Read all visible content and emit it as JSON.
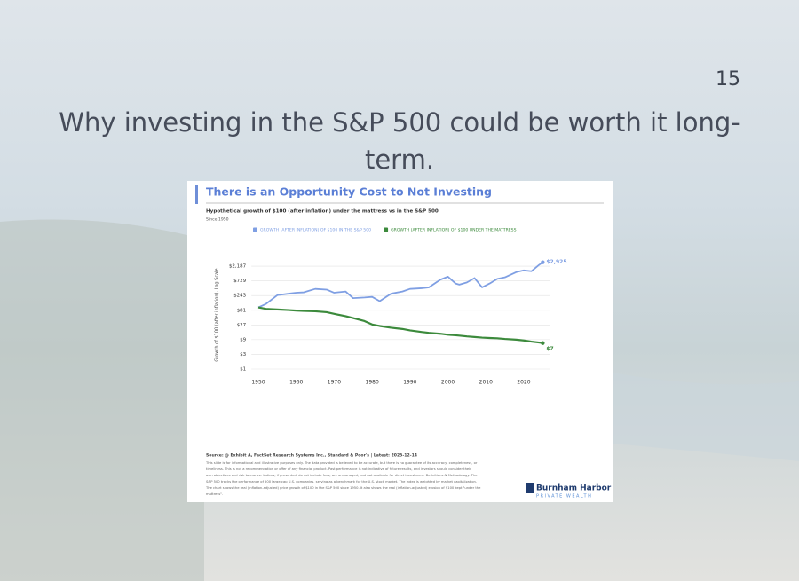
{
  "slide": {
    "page_number": "15",
    "title_lines": [
      "Why investing in the S&P 500 could be worth it long-",
      "term."
    ]
  },
  "chart_data": {
    "type": "line",
    "title": "There is an Opportunity Cost to Not Investing",
    "subtitle": "Hypothetical growth of $100 (after inflation) under the mattress vs in the S&P 500",
    "note": "Since 1950",
    "y_label": "Growth of $100 (after inflation), Log Scale",
    "log_y": true,
    "x": [
      1950,
      1952,
      1955,
      1958,
      1960,
      1962,
      1965,
      1968,
      1970,
      1973,
      1975,
      1978,
      1980,
      1982,
      1985,
      1988,
      1990,
      1993,
      1995,
      1998,
      2000,
      2002,
      2003,
      2005,
      2007,
      2009,
      2011,
      2013,
      2015,
      2018,
      2020,
      2022,
      2024,
      2025
    ],
    "series": [
      {
        "name": "GROWTH (AFTER INFLATION) OF $100 IN THE S&P 500",
        "color": "#7f9fe3",
        "values": [
          100,
          130,
          250,
          280,
          300,
          310,
          400,
          380,
          300,
          330,
          200,
          210,
          220,
          160,
          280,
          330,
          400,
          420,
          450,
          800,
          1000,
          600,
          550,
          650,
          900,
          450,
          600,
          850,
          950,
          1400,
          1600,
          1500,
          2400,
          2925
        ],
        "value_labels": [
          null,
          null,
          null,
          null,
          null,
          null,
          null,
          null,
          null,
          null,
          null,
          null,
          null,
          null,
          null,
          null,
          null,
          null,
          null,
          null,
          null,
          null,
          null,
          null,
          null,
          null,
          null,
          null,
          null,
          null,
          null,
          null,
          null,
          "$2,925"
        ]
      },
      {
        "name": "GROWTH (AFTER INFLATION) OF $100 UNDER THE MATTRESS",
        "color": "#3c8a3c",
        "values": [
          100,
          90,
          86,
          82,
          79,
          77,
          75,
          70,
          62,
          52,
          45,
          36,
          28,
          25,
          22,
          20,
          18,
          16,
          15,
          14,
          13,
          12.5,
          12.2,
          11.5,
          11,
          10.5,
          10.2,
          10,
          9.5,
          9,
          8.5,
          7.8,
          7.3,
          7
        ],
        "value_labels": [
          null,
          null,
          null,
          null,
          null,
          null,
          null,
          null,
          null,
          null,
          null,
          null,
          null,
          null,
          null,
          null,
          null,
          null,
          null,
          null,
          null,
          null,
          null,
          null,
          null,
          null,
          null,
          null,
          null,
          null,
          null,
          null,
          null,
          "$7"
        ]
      }
    ],
    "xlim": [
      1947,
      2027
    ],
    "xticks": [
      1950,
      1960,
      1970,
      1980,
      1990,
      2000,
      2010,
      2020
    ],
    "ylim": [
      1,
      3500
    ],
    "yticks": [
      {
        "value": 1,
        "label": "$1"
      },
      {
        "value": 3,
        "label": "$3"
      },
      {
        "value": 9,
        "label": "$9"
      },
      {
        "value": 27,
        "label": "$27"
      },
      {
        "value": 81,
        "label": "$81"
      },
      {
        "value": 243,
        "label": "$243"
      },
      {
        "value": 729,
        "label": "$729"
      },
      {
        "value": 2187,
        "label": "$2,187"
      }
    ],
    "grid": true,
    "source": "Source: @ Exhibit A, FactSet Research Systems Inc., Standard & Poor's | Latest: 2025-12-14",
    "disclaimer_lines": [
      "This slide is for informational and illustrative purposes only. The data provided is believed to be accurate, but there is no guarantee of its accuracy, completeness, or",
      "timeliness. This is not a recommendation or offer of any financial product. Past performance is not indicative of future results, and investors should consider their",
      "own objectives and risk tolerance. Indices, if presented, do not include fees, are unmanaged, and not available for direct investment. Definitions & Methodology: The",
      "S&P 500 tracks the performance of 500 large-cap U.S. companies, serving as a benchmark for the U.S. stock market. The index is weighted by market capitalization.",
      "The chart shows the real (inflation-adjusted) price growth of $100 in the S&P 500 since 1950. It also shows the real (inflation-adjusted) erosion of $100 kept \"under the",
      "mattress\"."
    ],
    "logo_name": "Burnham Harbor",
    "logo_tagline": "PRIVATE WEALTH"
  }
}
